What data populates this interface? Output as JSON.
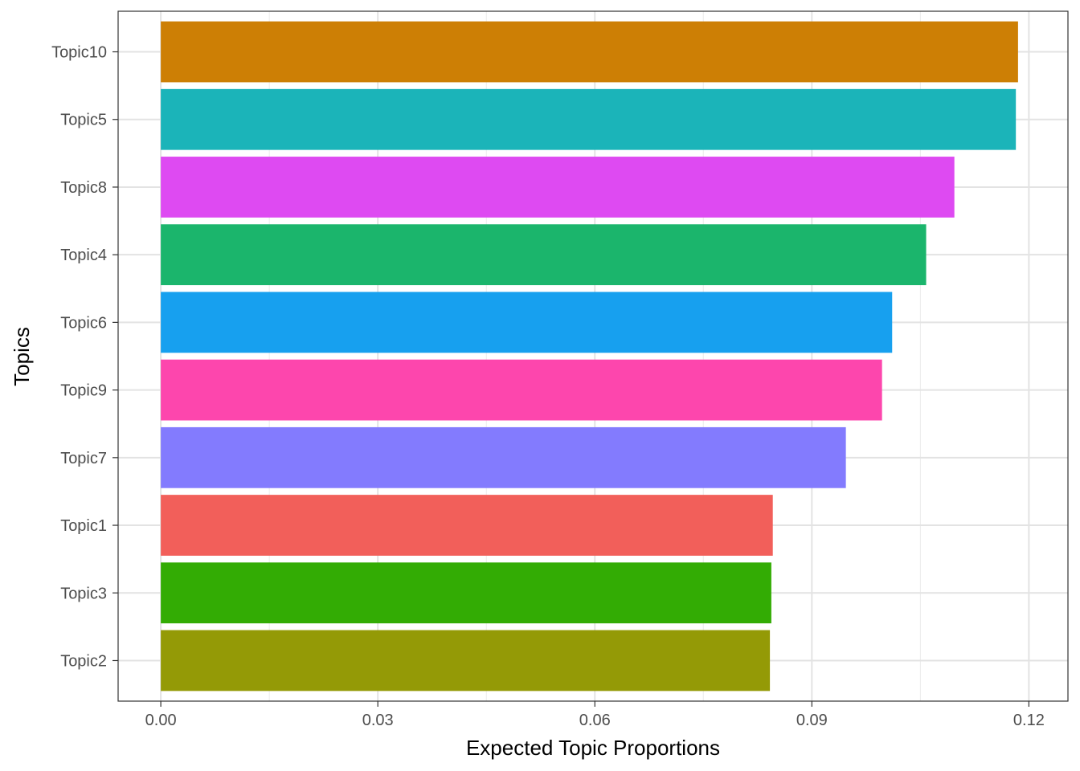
{
  "chart_data": {
    "type": "bar",
    "orientation": "horizontal",
    "xlabel": "Expected Topic Proportions",
    "ylabel": "Topics",
    "xlim": [
      -0.0059,
      0.1254
    ],
    "x_ticks": [
      0.0,
      0.03,
      0.06,
      0.09,
      0.12
    ],
    "x_tick_labels": [
      "0.00",
      "0.03",
      "0.06",
      "0.09",
      "0.12"
    ],
    "x_minor_ticks": [
      0.015,
      0.045,
      0.075,
      0.105
    ],
    "categories": [
      "Topic10",
      "Topic5",
      "Topic8",
      "Topic4",
      "Topic6",
      "Topic9",
      "Topic7",
      "Topic1",
      "Topic3",
      "Topic2"
    ],
    "values": [
      0.1185,
      0.1182,
      0.1097,
      0.1058,
      0.1011,
      0.0997,
      0.0947,
      0.0846,
      0.0844,
      0.0842
    ],
    "colors": [
      "#CD7F05",
      "#1BB4B9",
      "#DE4AF2",
      "#1BB56C",
      "#17A0EF",
      "#FD46AD",
      "#837BFE",
      "#F25F5A",
      "#33AC04",
      "#949A06"
    ],
    "grid": true,
    "legend": "none"
  }
}
